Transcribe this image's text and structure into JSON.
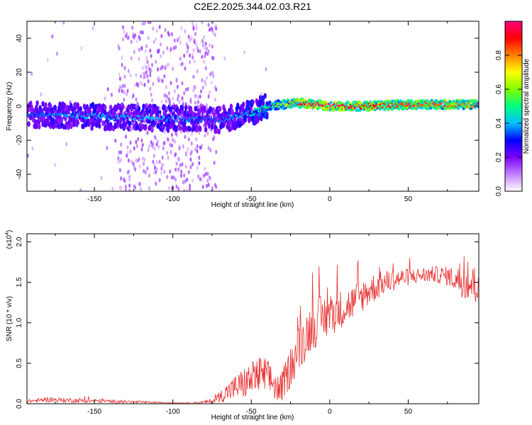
{
  "title": "C2E2.2025.344.02.03.R21",
  "chart_data": [
    {
      "type": "heatmap",
      "xlabel": "Height of straight line (km)",
      "ylabel": "Frequency (Hz)",
      "xlim": [
        -193,
        95
      ],
      "ylim": [
        -50,
        50
      ],
      "x_ticks": [
        -150,
        -100,
        -50,
        0,
        50
      ],
      "y_ticks": [
        -40,
        -20,
        0,
        20,
        40
      ],
      "colorbar": {
        "label": "Normalized spectral amplitude",
        "range": [
          0,
          1
        ],
        "ticks": [
          "0.0",
          "0.2",
          "0.4",
          "0.6",
          "0.8"
        ],
        "tick_values": [
          0,
          0.2,
          0.4,
          0.6,
          0.8
        ],
        "colors": [
          "#ffffff",
          "#c080ff",
          "#8000ff",
          "#0000ff",
          "#00c0ff",
          "#00ff80",
          "#80ff00",
          "#ffff00",
          "#ff8000",
          "#ff0000",
          "#ff0080"
        ]
      },
      "trace": {
        "description_points_x": [
          -190,
          -150,
          -110,
          -80,
          -70,
          -50,
          -40,
          -30,
          -20,
          0,
          20,
          50,
          95
        ],
        "center_freq_hz": [
          -5,
          -6,
          -7,
          -8,
          -8,
          -4,
          0,
          1,
          2,
          0,
          0,
          1,
          1
        ],
        "peak_amplitude": [
          0.35,
          0.4,
          0.4,
          0.35,
          0.35,
          0.45,
          0.5,
          0.65,
          0.9,
          1.0,
          0.9,
          0.85,
          0.8
        ]
      },
      "grid": false
    },
    {
      "type": "line",
      "xlabel": "Height of straight line (km)",
      "ylabel": "SNR (10 * v/v)",
      "scale_label": "(x10",
      "scale_exp": "4",
      "scale_close": ")",
      "xlim": [
        -193,
        95
      ],
      "ylim": [
        0,
        2.1
      ],
      "x_ticks": [
        -150,
        -100,
        -50,
        0,
        50
      ],
      "y_ticks": [
        "0.0",
        "0.5",
        "1.0",
        "1.5",
        "2.0"
      ],
      "y_tick_values": [
        0,
        0.5,
        1.0,
        1.5,
        2.0
      ],
      "series": [
        {
          "color": "#e83030",
          "envelope_x": [
            -193,
            -180,
            -160,
            -140,
            -120,
            -100,
            -85,
            -75,
            -65,
            -55,
            -45,
            -38,
            -32,
            -25,
            -18,
            -12,
            -5,
            5,
            15,
            25,
            35,
            45,
            55,
            65,
            75,
            85,
            95
          ],
          "envelope_y": [
            0.03,
            0.05,
            0.04,
            0.03,
            0.02,
            0.01,
            0.01,
            0.03,
            0.15,
            0.25,
            0.35,
            0.3,
            0.15,
            0.45,
            0.75,
            0.95,
            1.05,
            1.15,
            1.25,
            1.4,
            1.5,
            1.55,
            1.58,
            1.6,
            1.58,
            1.5,
            1.45
          ],
          "noise_amp": [
            0.02,
            0.03,
            0.03,
            0.02,
            0.015,
            0.005,
            0.01,
            0.03,
            0.12,
            0.2,
            0.25,
            0.22,
            0.18,
            0.25,
            0.3,
            0.3,
            0.3,
            0.25,
            0.22,
            0.2,
            0.15,
            0.12,
            0.1,
            0.1,
            0.12,
            0.2,
            0.25
          ]
        }
      ],
      "grid": false
    }
  ]
}
